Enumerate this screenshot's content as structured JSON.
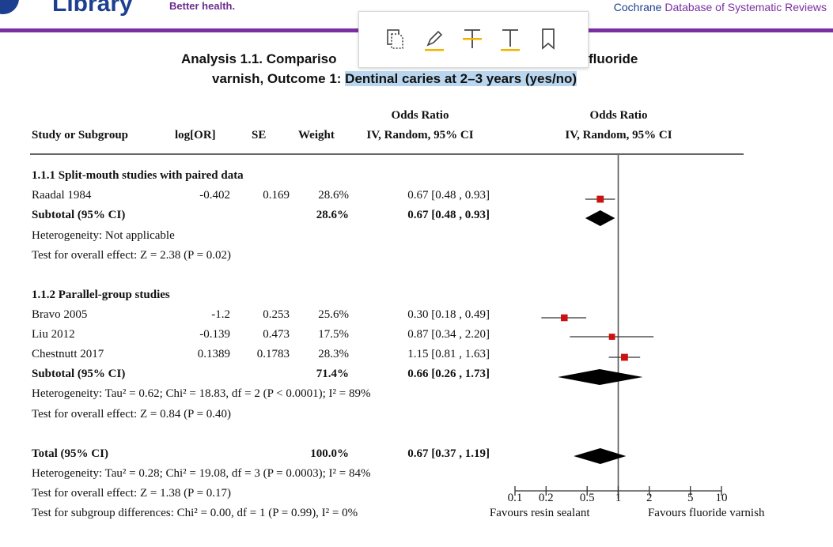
{
  "header": {
    "logo_text": "Library",
    "tagline": "Better health.",
    "journal_prefix": "Cochrane",
    "journal_rest": " Database of Systematic Reviews"
  },
  "toolbar": {
    "icons": [
      "copy-icon",
      "highlight-pen-icon",
      "strikethrough-icon",
      "underline-icon",
      "bookmark-icon"
    ]
  },
  "title": {
    "line1_a": "Analysis 1.1.  Compariso",
    "line1_b": "fluoride",
    "line2_a": "varnish, Outcome 1: ",
    "line2_selected": "Dentinal caries at 2–3 years (yes/no)"
  },
  "columns": {
    "study": "Study or Subgroup",
    "logor": "log[OR]",
    "se": "SE",
    "weight": "Weight",
    "or_top": "Odds Ratio",
    "or_sub": "IV, Random, 95% CI",
    "plot_top": "Odds Ratio",
    "plot_sub": "IV, Random, 95% CI"
  },
  "groups": [
    {
      "heading": "1.1.1 Split-mouth studies with paired data",
      "studies": [
        {
          "name": "Raadal 1984",
          "logor": "-0.402",
          "se": "0.169",
          "weight": "28.6%",
          "ci": "0.67 [0.48 , 0.93]"
        }
      ],
      "subtotal": {
        "label": "Subtotal (95% CI)",
        "weight": "28.6%",
        "ci": "0.67 [0.48 , 0.93]"
      },
      "heterogeneity": "Heterogeneity: Not applicable",
      "overall": "Test for overall effect: Z = 2.38 (P = 0.02)"
    },
    {
      "heading": "1.1.2 Parallel-group studies",
      "studies": [
        {
          "name": "Bravo 2005",
          "logor": "-1.2",
          "se": "0.253",
          "weight": "25.6%",
          "ci": "0.30 [0.18 , 0.49]"
        },
        {
          "name": "Liu 2012",
          "logor": "-0.139",
          "se": "0.473",
          "weight": "17.5%",
          "ci": "0.87 [0.34 , 2.20]"
        },
        {
          "name": "Chestnutt 2017",
          "logor": "0.1389",
          "se": "0.1783",
          "weight": "28.3%",
          "ci": "1.15 [0.81 , 1.63]"
        }
      ],
      "subtotal": {
        "label": "Subtotal (95% CI)",
        "weight": "71.4%",
        "ci": "0.66 [0.26 , 1.73]"
      },
      "heterogeneity": "Heterogeneity: Tau² = 0.62; Chi² = 18.83, df = 2 (P < 0.0001); I² = 89%",
      "overall": "Test for overall effect: Z = 0.84 (P = 0.40)"
    }
  ],
  "total": {
    "label": "Total (95% CI)",
    "weight": "100.0%",
    "ci": "0.67 [0.37 , 1.19]",
    "heterogeneity": "Heterogeneity: Tau² = 0.28; Chi² = 19.08, df = 3 (P = 0.0003); I² = 84%",
    "overall": "Test for overall effect: Z = 1.38 (P = 0.17)",
    "subgroup": "Test for subgroup differences: Chi² = 0.00, df = 1 (P = 0.99), I² = 0%"
  },
  "chart_data": {
    "type": "forest",
    "x_scale": "log",
    "xlim": [
      0.1,
      10
    ],
    "x_ticks": [
      0.1,
      0.2,
      0.5,
      1,
      2,
      5,
      10
    ],
    "x_tick_labels": [
      "0.1",
      "0.2",
      "0.5",
      "1",
      "2",
      "5",
      "10"
    ],
    "favours_left": "Favours resin sealant",
    "favours_right": "Favours fluoride varnish",
    "null_line": 1,
    "marker_color": "#cc1111",
    "points": [
      {
        "id": "raadal",
        "est": 0.67,
        "lo": 0.48,
        "hi": 0.93,
        "weight": 28.6
      },
      {
        "id": "sub1",
        "est": 0.67,
        "lo": 0.48,
        "hi": 0.93,
        "diamond": true
      },
      {
        "id": "bravo",
        "est": 0.3,
        "lo": 0.18,
        "hi": 0.49,
        "weight": 25.6
      },
      {
        "id": "liu",
        "est": 0.87,
        "lo": 0.34,
        "hi": 2.2,
        "weight": 17.5
      },
      {
        "id": "chestnutt",
        "est": 1.15,
        "lo": 0.81,
        "hi": 1.63,
        "weight": 28.3
      },
      {
        "id": "sub2",
        "est": 0.66,
        "lo": 0.26,
        "hi": 1.73,
        "diamond": true
      },
      {
        "id": "total",
        "est": 0.67,
        "lo": 0.37,
        "hi": 1.19,
        "diamond": true
      }
    ]
  }
}
